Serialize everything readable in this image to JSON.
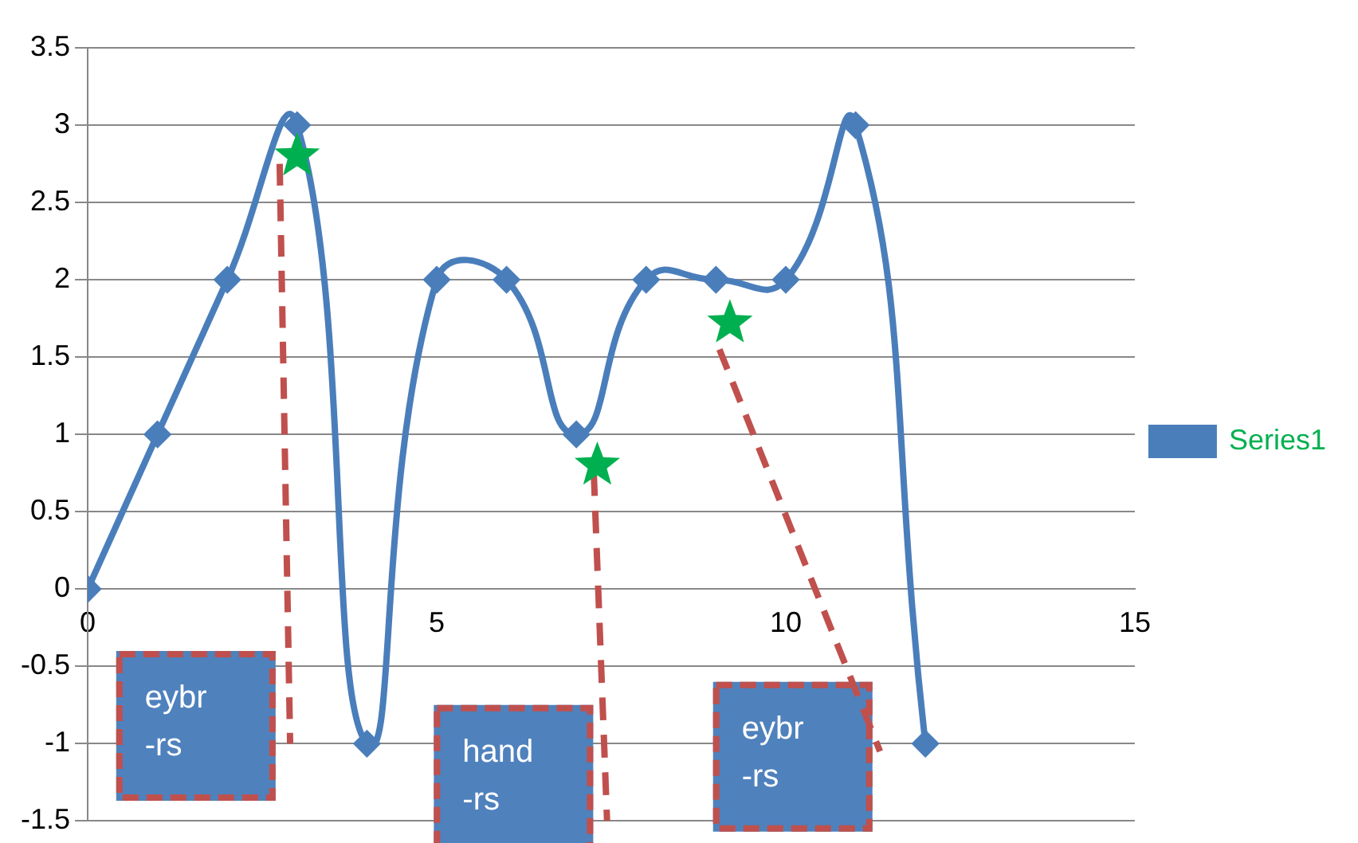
{
  "chart_data": {
    "type": "line",
    "x": [
      0,
      1,
      2,
      3,
      4,
      5,
      6,
      7,
      8,
      9,
      10,
      11,
      12
    ],
    "series": [
      {
        "name": "Series1",
        "color": "#4a7ebb",
        "values": [
          0,
          1,
          2,
          3,
          -1,
          2,
          2,
          1,
          2,
          2,
          2,
          3,
          -1
        ],
        "marker": "diamond"
      },
      {
        "type": "scatter",
        "color": "#00b050",
        "x": [
          3,
          7.3,
          9.2
        ],
        "values": [
          2.8,
          0.8,
          1.72
        ],
        "marker": "star"
      },
      {
        "type": "line",
        "color": "#c0504d",
        "x": [
          2.75,
          2.9
        ],
        "values": [
          2.75,
          -1.0
        ],
        "marker": "none",
        "line_style": "dashed"
      },
      {
        "type": "line",
        "color": "#c0504d",
        "x": [
          7.25,
          7.44
        ],
        "values": [
          0.75,
          -1.5
        ],
        "marker": "none",
        "line_style": "dashed"
      },
      {
        "type": "line",
        "color": "#c0504d",
        "x": [
          9.05,
          11.35
        ],
        "values": [
          1.55,
          -1.05
        ],
        "marker": "none",
        "line_style": "dashed"
      }
    ],
    "xlim": [
      0,
      15
    ],
    "xticks": [
      0,
      5,
      10,
      15
    ],
    "ylim": [
      -1.5,
      3.5
    ],
    "yticks": [
      -1.5,
      -1,
      -0.5,
      0,
      0.5,
      1,
      1.5,
      2,
      2.5,
      3,
      3.5
    ],
    "grid": "y",
    "legend": "right",
    "annotations": [
      "eybr\n-rs",
      "hand\n-rs",
      "eybr\n-rs"
    ]
  }
}
